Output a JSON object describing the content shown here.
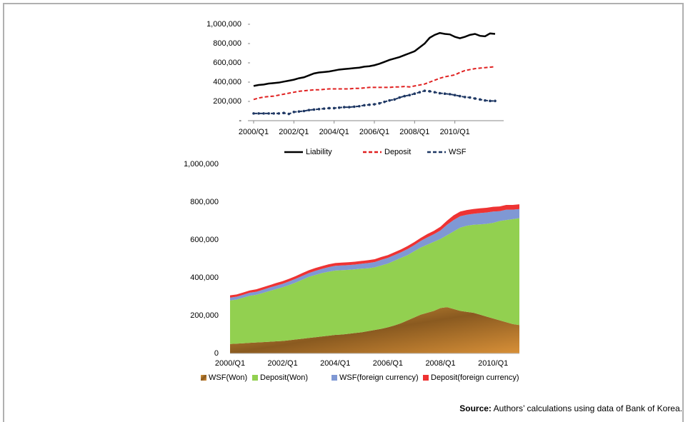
{
  "chart_data": [
    {
      "type": "line",
      "legend": "bottom",
      "categories": [
        "2000/Q1",
        null,
        null,
        null,
        null,
        null,
        null,
        null,
        "2002/Q1",
        null,
        null,
        null,
        null,
        null,
        null,
        null,
        "2004/Q1",
        null,
        null,
        null,
        null,
        null,
        null,
        null,
        "2006/Q1",
        null,
        null,
        null,
        null,
        null,
        null,
        null,
        "2008/Q1",
        null,
        null,
        null,
        null,
        null,
        null,
        null,
        "2010/Q1",
        null,
        null,
        null,
        null,
        null,
        null,
        null,
        null
      ],
      "ylim": [
        0,
        1000000
      ],
      "yticks": [
        {
          "value": 0,
          "label": "-"
        },
        {
          "value": 200000,
          "label": "200,000"
        },
        {
          "value": 400000,
          "label": "400,000"
        },
        {
          "value": 600000,
          "label": "600,000"
        },
        {
          "value": 800000,
          "label": "800,000"
        },
        {
          "value": 1000000,
          "label": "1,000,000"
        }
      ],
      "series": [
        {
          "name": "Liability",
          "color": "#000000",
          "style": "solid",
          "values": [
            360000,
            370000,
            375000,
            385000,
            390000,
            395000,
            405000,
            415000,
            425000,
            440000,
            450000,
            470000,
            490000,
            500000,
            505000,
            510000,
            520000,
            530000,
            535000,
            540000,
            545000,
            550000,
            560000,
            565000,
            575000,
            590000,
            610000,
            630000,
            645000,
            660000,
            680000,
            700000,
            720000,
            760000,
            800000,
            860000,
            890000,
            910000,
            900000,
            895000,
            870000,
            855000,
            870000,
            890000,
            900000,
            880000,
            875000,
            905000,
            900000
          ]
        },
        {
          "name": "Deposit",
          "color": "#e02020",
          "style": "dashed",
          "values": [
            220000,
            235000,
            245000,
            250000,
            255000,
            265000,
            275000,
            285000,
            295000,
            305000,
            310000,
            315000,
            320000,
            320000,
            325000,
            330000,
            330000,
            330000,
            330000,
            330000,
            335000,
            335000,
            340000,
            345000,
            345000,
            345000,
            345000,
            345000,
            350000,
            350000,
            355000,
            350000,
            360000,
            370000,
            380000,
            400000,
            420000,
            440000,
            455000,
            465000,
            475000,
            500000,
            520000,
            530000,
            540000,
            545000,
            550000,
            555000,
            560000
          ]
        },
        {
          "name": "WSF",
          "color": "#1f3864",
          "style": "dashed",
          "marker": "dot",
          "values": [
            75000,
            75000,
            75000,
            75000,
            75000,
            75000,
            80000,
            70000,
            90000,
            95000,
            100000,
            110000,
            115000,
            120000,
            125000,
            130000,
            130000,
            135000,
            140000,
            140000,
            145000,
            150000,
            160000,
            165000,
            170000,
            180000,
            195000,
            210000,
            220000,
            240000,
            255000,
            265000,
            280000,
            295000,
            310000,
            305000,
            295000,
            285000,
            280000,
            275000,
            265000,
            255000,
            245000,
            240000,
            230000,
            220000,
            210000,
            205000,
            205000
          ]
        }
      ]
    },
    {
      "type": "stacked_area",
      "legend": "bottom",
      "categories": [
        "2000/Q1",
        null,
        null,
        null,
        null,
        null,
        null,
        null,
        "2002/Q1",
        null,
        null,
        null,
        null,
        null,
        null,
        null,
        "2004/Q1",
        null,
        null,
        null,
        null,
        null,
        null,
        null,
        "2006/Q1",
        null,
        null,
        null,
        null,
        null,
        null,
        null,
        "2008/Q1",
        null,
        null,
        null,
        null,
        null,
        null,
        null,
        "2010/Q1",
        null,
        null,
        null,
        null
      ],
      "ylim": [
        0,
        1000000
      ],
      "yticks": [
        0,
        {
          "value": 200000,
          "label": "200,000"
        },
        {
          "value": 400000,
          "label": "400,000"
        },
        {
          "value": 600000,
          "label": "600,000"
        },
        {
          "value": 800000,
          "label": "800,000"
        },
        {
          "value": 1000000,
          "label": "1,000,000"
        }
      ],
      "series": [
        {
          "name": "WSF(Won)",
          "color": "#c8822a",
          "values": [
            50000,
            52000,
            54000,
            56000,
            58000,
            60000,
            62000,
            64000,
            66000,
            70000,
            74000,
            78000,
            82000,
            86000,
            90000,
            94000,
            98000,
            100000,
            104000,
            108000,
            112000,
            118000,
            124000,
            130000,
            138000,
            148000,
            160000,
            175000,
            190000,
            205000,
            215000,
            225000,
            240000,
            245000,
            235000,
            225000,
            220000,
            215000,
            205000,
            195000,
            185000,
            175000,
            165000,
            155000,
            150000
          ]
        },
        {
          "name": "Deposit(Won)",
          "color": "#92d050",
          "values": [
            230000,
            233000,
            241000,
            249000,
            252000,
            260000,
            268000,
            276000,
            284000,
            292000,
            301000,
            312000,
            323000,
            329000,
            335000,
            338000,
            340000,
            340000,
            338000,
            337000,
            336000,
            332000,
            331000,
            335000,
            337000,
            342000,
            345000,
            345000,
            350000,
            355000,
            360000,
            365000,
            365000,
            380000,
            410000,
            440000,
            455000,
            465000,
            477000,
            490000,
            505000,
            525000,
            540000,
            555000,
            565000
          ]
        },
        {
          "name": "WSF(foreign currency)",
          "color": "#7f98d4",
          "values": [
            15000,
            15000,
            15000,
            16000,
            16000,
            17000,
            18000,
            18000,
            18000,
            19000,
            20000,
            20000,
            20000,
            22000,
            22000,
            24000,
            25000,
            25000,
            25000,
            25000,
            26000,
            28000,
            28000,
            30000,
            30000,
            30000,
            30000,
            32000,
            32000,
            35000,
            38000,
            40000,
            45000,
            55000,
            60000,
            60000,
            58000,
            58000,
            60000,
            60000,
            60000,
            52000,
            55000,
            50000,
            48000
          ]
        },
        {
          "name": "Deposit(foreign currency)",
          "color": "#ee3333",
          "values": [
            12000,
            12000,
            12000,
            12000,
            13000,
            13000,
            13000,
            14000,
            14000,
            14000,
            14000,
            15000,
            15000,
            15000,
            15000,
            15000,
            15000,
            15000,
            15000,
            15000,
            15000,
            15000,
            15000,
            15000,
            15000,
            15000,
            15000,
            16000,
            16000,
            16000,
            18000,
            18000,
            20000,
            22000,
            25000,
            25000,
            25000,
            25000,
            25000,
            25000,
            25000,
            25000,
            25000,
            25000,
            25000
          ]
        }
      ]
    }
  ],
  "source": {
    "label": "Source:",
    "text": "Authors’ calculations using data of Bank of Korea."
  }
}
